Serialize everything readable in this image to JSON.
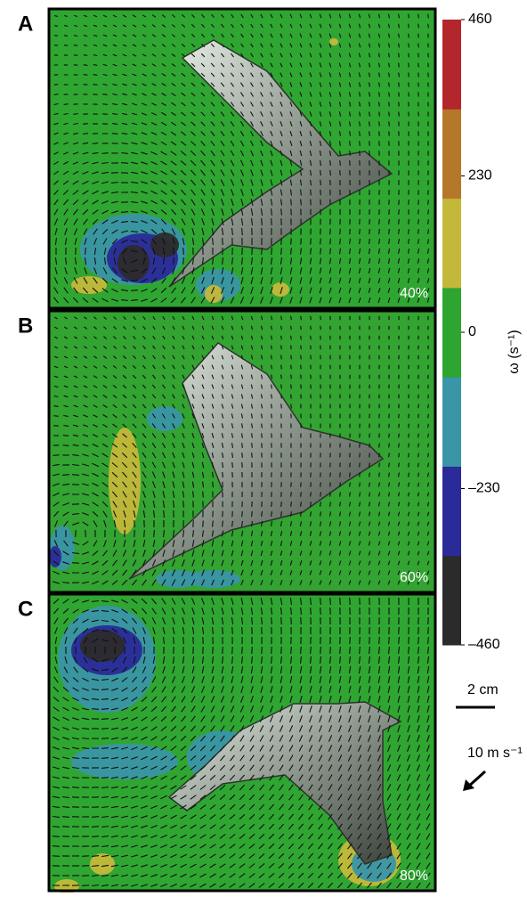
{
  "panels": [
    {
      "letter": "A",
      "phase": "40%"
    },
    {
      "letter": "B",
      "phase": "60%"
    },
    {
      "letter": "C",
      "phase": "80%"
    }
  ],
  "colorbar": {
    "label": "ω (s⁻¹)",
    "lim": [
      -460,
      460
    ],
    "colors": [
      "#2b2b2b",
      "#2a2a98",
      "#3a95a6",
      "#2ea530",
      "#c4b83a",
      "#b5772a",
      "#b3262c"
    ],
    "ticks": [
      460,
      230,
      0,
      {
        "value": -230,
        "label": "–230"
      },
      {
        "value": -460,
        "label": "–460"
      }
    ]
  },
  "scale_bar": {
    "length_label": "2 cm",
    "velocity_label": "10 m s⁻¹"
  }
}
